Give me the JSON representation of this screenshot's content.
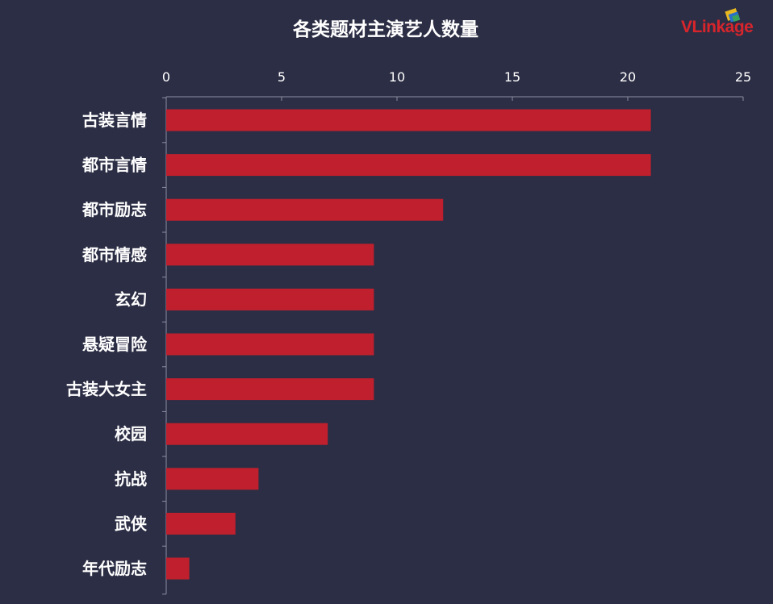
{
  "brand": {
    "logo_text": "VLinkage",
    "logo_color": "#d8252c"
  },
  "chart_data": {
    "type": "bar",
    "orientation": "horizontal",
    "title": "各类题材主演艺人数量",
    "categories": [
      "古装言情",
      "都市言情",
      "都市励志",
      "都市情感",
      "玄幻",
      "悬疑冒险",
      "古装大女主",
      "校园",
      "抗战",
      "武侠",
      "年代励志"
    ],
    "values": [
      21,
      21,
      12,
      9,
      9,
      9,
      9,
      7,
      4,
      3,
      1
    ],
    "xlim": [
      0,
      25
    ],
    "xticks": [
      0,
      5,
      10,
      15,
      20,
      25
    ],
    "x_axis_position": "top",
    "grid": false,
    "legend": "none",
    "bar_color": "#c0202d",
    "background_color": "#2c2e45"
  }
}
